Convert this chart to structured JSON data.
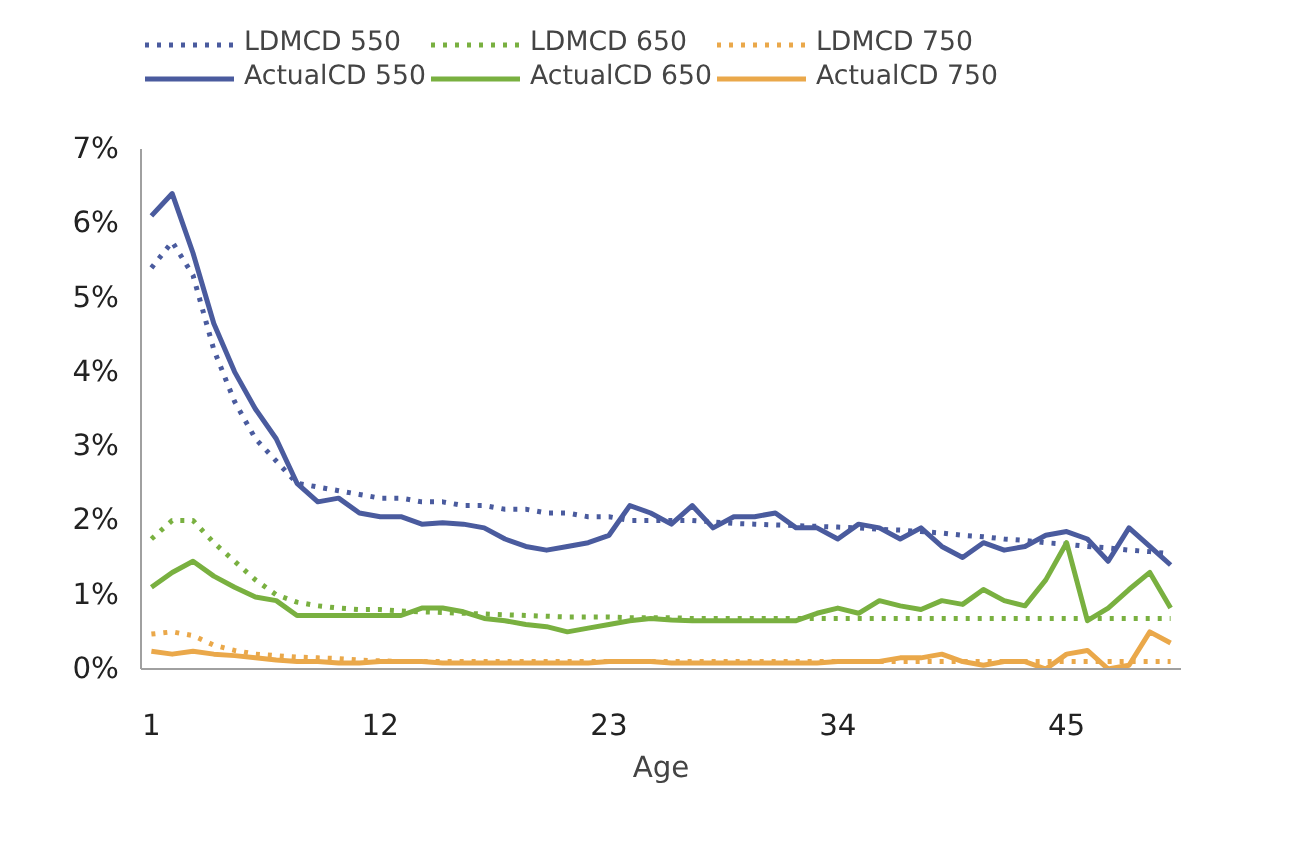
{
  "chart_data": {
    "type": "line",
    "xlabel": "Age",
    "x": [
      1,
      2,
      3,
      4,
      5,
      6,
      7,
      8,
      9,
      10,
      11,
      12,
      13,
      14,
      15,
      16,
      17,
      18,
      19,
      20,
      21,
      22,
      23,
      24,
      25,
      26,
      27,
      28,
      29,
      30,
      31,
      32,
      33,
      34,
      35,
      36,
      37,
      38,
      39,
      40,
      41,
      42,
      43,
      44,
      45,
      46,
      47,
      48,
      49,
      50
    ],
    "xlim": [
      0.5,
      50.5
    ],
    "xticks": [
      1,
      12,
      23,
      34,
      45
    ],
    "ylim": [
      0,
      7
    ],
    "yticks": [
      {
        "value": 0,
        "label": "0%"
      },
      {
        "value": 1,
        "label": "1%"
      },
      {
        "value": 2,
        "label": "2%"
      },
      {
        "value": 3,
        "label": "3%"
      },
      {
        "value": 4,
        "label": "4%"
      },
      {
        "value": 5,
        "label": "5%"
      },
      {
        "value": 6,
        "label": "6%"
      },
      {
        "value": 7,
        "label": "7%"
      }
    ],
    "grid": false,
    "legend": "top",
    "marker": "none",
    "series": [
      {
        "name": "LDMCD 550",
        "color": "#4a5b9e",
        "line_style": "dotted",
        "values": [
          5.4,
          5.75,
          5.3,
          4.3,
          3.6,
          3.1,
          2.8,
          2.5,
          2.45,
          2.4,
          2.35,
          2.3,
          2.3,
          2.25,
          2.25,
          2.2,
          2.2,
          2.15,
          2.15,
          2.1,
          2.1,
          2.05,
          2.05,
          2.0,
          2.0,
          2.0,
          2.0,
          1.98,
          1.96,
          1.95,
          1.94,
          1.93,
          1.92,
          1.91,
          1.9,
          1.88,
          1.87,
          1.85,
          1.83,
          1.8,
          1.78,
          1.75,
          1.73,
          1.7,
          1.68,
          1.65,
          1.63,
          1.6,
          1.58,
          1.55
        ]
      },
      {
        "name": "LDMCD 650",
        "color": "#79b040",
        "line_style": "dotted",
        "values": [
          1.75,
          2.0,
          2.0,
          1.7,
          1.45,
          1.2,
          1.0,
          0.9,
          0.85,
          0.82,
          0.8,
          0.8,
          0.78,
          0.77,
          0.76,
          0.75,
          0.74,
          0.73,
          0.72,
          0.71,
          0.7,
          0.7,
          0.7,
          0.69,
          0.69,
          0.69,
          0.68,
          0.68,
          0.68,
          0.68,
          0.68,
          0.68,
          0.68,
          0.68,
          0.68,
          0.68,
          0.68,
          0.68,
          0.68,
          0.68,
          0.68,
          0.68,
          0.68,
          0.68,
          0.68,
          0.68,
          0.68,
          0.68,
          0.68,
          0.68
        ]
      },
      {
        "name": "LDMCD 750",
        "color": "#eaa84a",
        "line_style": "dotted",
        "values": [
          0.47,
          0.5,
          0.45,
          0.32,
          0.25,
          0.2,
          0.18,
          0.16,
          0.15,
          0.14,
          0.12,
          0.11,
          0.1,
          0.1,
          0.1,
          0.1,
          0.1,
          0.1,
          0.1,
          0.1,
          0.1,
          0.1,
          0.1,
          0.1,
          0.1,
          0.1,
          0.1,
          0.1,
          0.1,
          0.1,
          0.1,
          0.1,
          0.1,
          0.1,
          0.1,
          0.1,
          0.1,
          0.1,
          0.1,
          0.1,
          0.1,
          0.1,
          0.1,
          0.1,
          0.1,
          0.1,
          0.1,
          0.1,
          0.1,
          0.1
        ]
      },
      {
        "name": "ActualCD 550",
        "color": "#4a5b9e",
        "line_style": "solid",
        "values": [
          6.1,
          6.4,
          5.6,
          4.65,
          4.0,
          3.5,
          3.1,
          2.5,
          2.25,
          2.3,
          2.1,
          2.05,
          2.05,
          1.95,
          1.97,
          1.95,
          1.9,
          1.75,
          1.65,
          1.6,
          1.65,
          1.7,
          1.8,
          2.2,
          2.1,
          1.95,
          2.2,
          1.9,
          2.05,
          2.05,
          2.1,
          1.9,
          1.9,
          1.75,
          1.95,
          1.9,
          1.75,
          1.9,
          1.65,
          1.5,
          1.7,
          1.6,
          1.65,
          1.8,
          1.85,
          1.75,
          1.45,
          1.9,
          1.65,
          1.4
        ]
      },
      {
        "name": "ActualCD 650",
        "color": "#79b040",
        "line_style": "solid",
        "values": [
          1.1,
          1.3,
          1.45,
          1.25,
          1.1,
          0.97,
          0.92,
          0.72,
          0.72,
          0.72,
          0.72,
          0.72,
          0.72,
          0.82,
          0.82,
          0.77,
          0.68,
          0.65,
          0.6,
          0.57,
          0.5,
          0.55,
          0.6,
          0.65,
          0.68,
          0.66,
          0.65,
          0.65,
          0.65,
          0.65,
          0.65,
          0.65,
          0.75,
          0.82,
          0.75,
          0.92,
          0.85,
          0.8,
          0.92,
          0.87,
          1.07,
          0.92,
          0.85,
          1.2,
          1.7,
          0.65,
          0.82,
          1.07,
          1.3,
          0.82
        ]
      },
      {
        "name": "ActualCD 750",
        "color": "#eaa84a",
        "line_style": "solid",
        "values": [
          0.24,
          0.2,
          0.24,
          0.2,
          0.18,
          0.15,
          0.12,
          0.1,
          0.1,
          0.08,
          0.08,
          0.1,
          0.1,
          0.1,
          0.08,
          0.08,
          0.08,
          0.08,
          0.08,
          0.08,
          0.08,
          0.08,
          0.1,
          0.1,
          0.1,
          0.08,
          0.08,
          0.08,
          0.08,
          0.08,
          0.08,
          0.08,
          0.08,
          0.1,
          0.1,
          0.1,
          0.15,
          0.15,
          0.2,
          0.1,
          0.05,
          0.1,
          0.1,
          0.0,
          0.2,
          0.25,
          0.0,
          0.05,
          0.5,
          0.35
        ]
      }
    ]
  }
}
